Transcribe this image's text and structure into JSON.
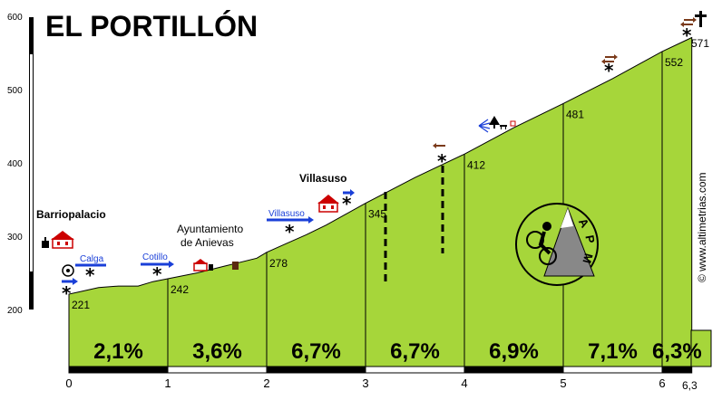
{
  "colors": {
    "fill": "#a6d63a",
    "road_arrow": "#1a3fd8",
    "sign": "#7a3a1a"
  },
  "chart_data": {
    "type": "area",
    "title": "EL PORTILLÓN",
    "xlim": [
      0,
      6.3
    ],
    "ylim": [
      200,
      600
    ],
    "y_ticks": [
      "200",
      "300",
      "400",
      "500",
      "600"
    ],
    "x_ticks": [
      "0",
      "1",
      "2",
      "3",
      "4",
      "5",
      "6"
    ],
    "x_end_label": "6,3",
    "profile": [
      [
        0,
        221
      ],
      [
        0.1,
        224
      ],
      [
        0.3,
        230
      ],
      [
        0.5,
        232
      ],
      [
        0.7,
        232
      ],
      [
        0.85,
        238
      ],
      [
        1,
        242
      ],
      [
        1.3,
        250
      ],
      [
        1.6,
        260
      ],
      [
        1.9,
        270
      ],
      [
        2,
        278
      ],
      [
        2.2,
        290
      ],
      [
        2.4,
        302
      ],
      [
        2.6,
        315
      ],
      [
        2.8,
        330
      ],
      [
        3,
        345
      ],
      [
        3.5,
        380
      ],
      [
        4,
        412
      ],
      [
        4.5,
        448
      ],
      [
        5,
        481
      ],
      [
        5.5,
        515
      ],
      [
        6,
        552
      ],
      [
        6.3,
        571
      ]
    ],
    "km_points": [
      {
        "x": 0,
        "elev": "221",
        "grad": "2,1%"
      },
      {
        "x": 1,
        "elev": "242",
        "grad": "3,6%"
      },
      {
        "x": 2,
        "elev": "278",
        "grad": "6,7%"
      },
      {
        "x": 3,
        "elev": "345",
        "grad": "6,7%"
      },
      {
        "x": 4,
        "elev": "412",
        "grad": "6,9%"
      },
      {
        "x": 5,
        "elev": "481",
        "grad": "7,1%"
      },
      {
        "x": 6,
        "elev": "552",
        "grad": "6,3%"
      }
    ],
    "summit_elev": "571"
  },
  "places": {
    "barriopalacio": "Barriopalacio",
    "ayuntamiento_1": "Ayuntamiento",
    "ayuntamiento_2": "de Anievas",
    "villasuso": "Villasuso"
  },
  "roads": {
    "calga": "Calga",
    "cotillo": "Cotillo",
    "villasuso": "Villasuso"
  },
  "credit": "© www.altimetrias.com",
  "logo": {
    "letter_a": "A",
    "letter_p": "P",
    "letter_m": "M"
  }
}
